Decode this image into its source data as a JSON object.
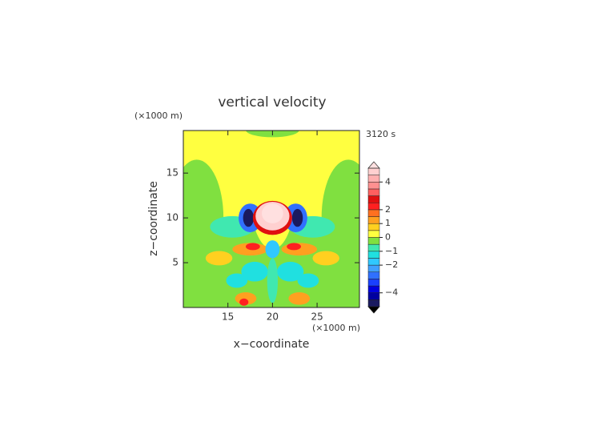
{
  "chart_data": {
    "type": "contour",
    "title": "vertical velocity",
    "time_label": "3120 s",
    "xlabel": "x−coordinate",
    "ylabel": "z−coordinate",
    "x_unit": "(×1000 m)",
    "y_unit": "(×1000 m)",
    "xlim": [
      10,
      29.75
    ],
    "ylim": [
      0,
      19.75
    ],
    "xticks": [
      15,
      20,
      25
    ],
    "yticks": [
      5,
      10,
      15
    ],
    "colorbar": {
      "levels": [
        -5,
        -4.5,
        -4,
        -3.5,
        -3,
        -2.5,
        -2,
        -1.5,
        -1,
        -0.5,
        0,
        0.5,
        1,
        1.5,
        2,
        2.5,
        3,
        3.5,
        4,
        4.5,
        5
      ],
      "colors": [
        "#1a1a60",
        "#0000a0",
        "#0000e0",
        "#1a40ff",
        "#3070ff",
        "#40a0ff",
        "#30c8ff",
        "#20e0e0",
        "#40e8b0",
        "#80e040",
        "#ffff40",
        "#ffd020",
        "#ffa020",
        "#ff7020",
        "#ff2020",
        "#e01010",
        "#ff6060",
        "#ff9090",
        "#ffb0b0",
        "#ffd0d0"
      ],
      "under_color": "#000000",
      "over_color": "#ffe0e0",
      "ticks": [
        {
          "value": -4,
          "label": "−4"
        },
        {
          "value": -2,
          "label": "−2"
        },
        {
          "value": -1,
          "label": "−1"
        },
        0,
        1,
        2,
        4
      ]
    },
    "features": [
      {
        "x": 20,
        "y": 10,
        "rx": 14,
        "ry": 14,
        "value": 0.25
      },
      {
        "x": 20,
        "y": 3,
        "rx": 12,
        "ry": 6.5,
        "value": -0.25
      },
      {
        "x": 11.5,
        "y": 10,
        "rx": 3,
        "ry": 6.5,
        "value": -0.25
      },
      {
        "x": 28.5,
        "y": 10,
        "rx": 3,
        "ry": 6.5,
        "value": -0.25
      },
      {
        "x": 20,
        "y": 19.8,
        "rx": 3,
        "ry": 0.8,
        "value": -0.25
      },
      {
        "x": 20,
        "y": 12.5,
        "rx": 2.5,
        "ry": 6,
        "value": 0.25
      },
      {
        "x": 15.5,
        "y": 9,
        "rx": 2.5,
        "ry": 1.2,
        "value": -0.75
      },
      {
        "x": 24.5,
        "y": 9,
        "rx": 2.5,
        "ry": 1.2,
        "value": -0.75
      },
      {
        "x": 14,
        "y": 5.5,
        "rx": 1.5,
        "ry": 0.8,
        "value": 0.7
      },
      {
        "x": 26,
        "y": 5.5,
        "rx": 1.5,
        "ry": 0.8,
        "value": 0.7
      },
      {
        "x": 17.5,
        "y": 6.5,
        "rx": 2,
        "ry": 0.7,
        "value": 1.2
      },
      {
        "x": 23,
        "y": 6.5,
        "rx": 2,
        "ry": 0.7,
        "value": 1.2
      },
      {
        "x": 17.8,
        "y": 6.8,
        "rx": 0.8,
        "ry": 0.4,
        "value": 2.2
      },
      {
        "x": 22.4,
        "y": 6.8,
        "rx": 0.8,
        "ry": 0.4,
        "value": 2.2
      },
      {
        "x": 18,
        "y": 4,
        "rx": 1.5,
        "ry": 1.1,
        "value": -1.2
      },
      {
        "x": 22,
        "y": 4,
        "rx": 1.5,
        "ry": 1.1,
        "value": -1.2
      },
      {
        "x": 16,
        "y": 3,
        "rx": 1.2,
        "ry": 0.8,
        "value": -1.3
      },
      {
        "x": 24,
        "y": 3,
        "rx": 1.2,
        "ry": 0.8,
        "value": -1.3
      },
      {
        "x": 20,
        "y": 3,
        "rx": 0.6,
        "ry": 2.5,
        "value": -0.75
      },
      {
        "x": 20,
        "y": 6.5,
        "rx": 0.8,
        "ry": 1,
        "value": -1.7
      },
      {
        "x": 17,
        "y": 1,
        "rx": 1.2,
        "ry": 0.7,
        "value": 1.2
      },
      {
        "x": 23,
        "y": 1,
        "rx": 1.2,
        "ry": 0.7,
        "value": 1.2
      },
      {
        "x": 16.8,
        "y": 0.6,
        "rx": 0.5,
        "ry": 0.4,
        "value": 2.2
      },
      {
        "x": 17.5,
        "y": 10,
        "rx": 1.3,
        "ry": 1.6,
        "value": -3
      },
      {
        "x": 22.6,
        "y": 10,
        "rx": 1.3,
        "ry": 1.6,
        "value": -3
      },
      {
        "x": 17.3,
        "y": 10,
        "rx": 0.6,
        "ry": 1,
        "value": -4.7
      },
      {
        "x": 22.8,
        "y": 10,
        "rx": 0.6,
        "ry": 1,
        "value": -4.7
      },
      {
        "x": 20,
        "y": 10,
        "rx": 2.2,
        "ry": 1.9,
        "value": 2.5
      },
      {
        "x": 20,
        "y": 10.2,
        "rx": 1.9,
        "ry": 1.6,
        "value": 4.5
      },
      {
        "x": 20,
        "y": 10.5,
        "rx": 1.2,
        "ry": 1.1,
        "value": 5.2
      }
    ]
  }
}
